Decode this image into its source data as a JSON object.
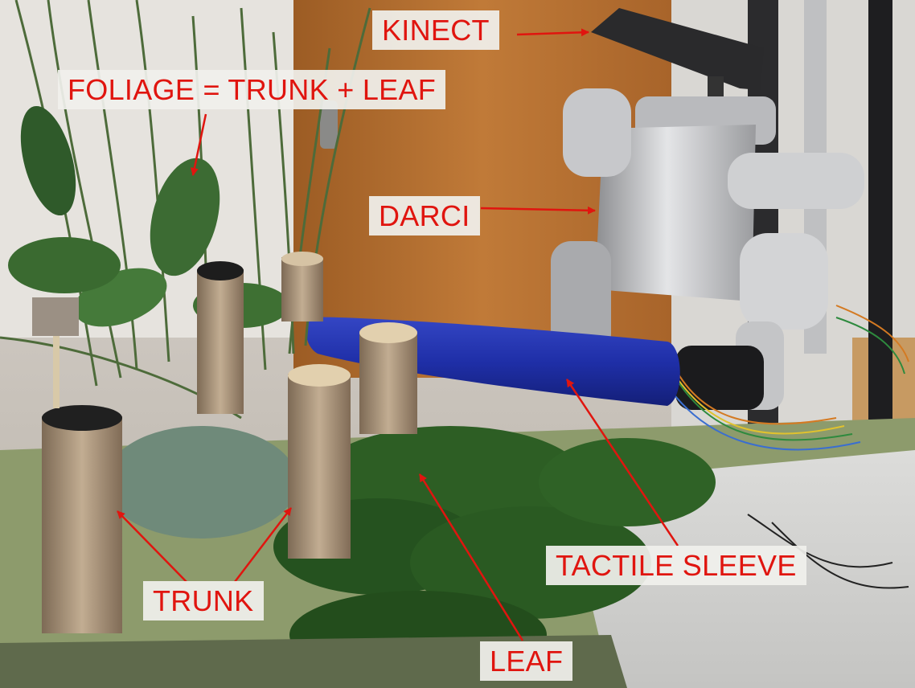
{
  "labels": {
    "kinect": "KINECT",
    "foliage": "FOLIAGE = TRUNK + LEAF",
    "darci": "DARCI",
    "trunk": "TRUNK",
    "tactile_sleeve": "TACTILE SLEEVE",
    "leaf": "LEAF"
  },
  "colors": {
    "label_text": "#e0150f",
    "label_background": "#f0f0ec",
    "arrow": "#e0150f",
    "sleeve": "#1f2fa8",
    "door": "#b36f2e",
    "robot": "#c9cacc"
  }
}
